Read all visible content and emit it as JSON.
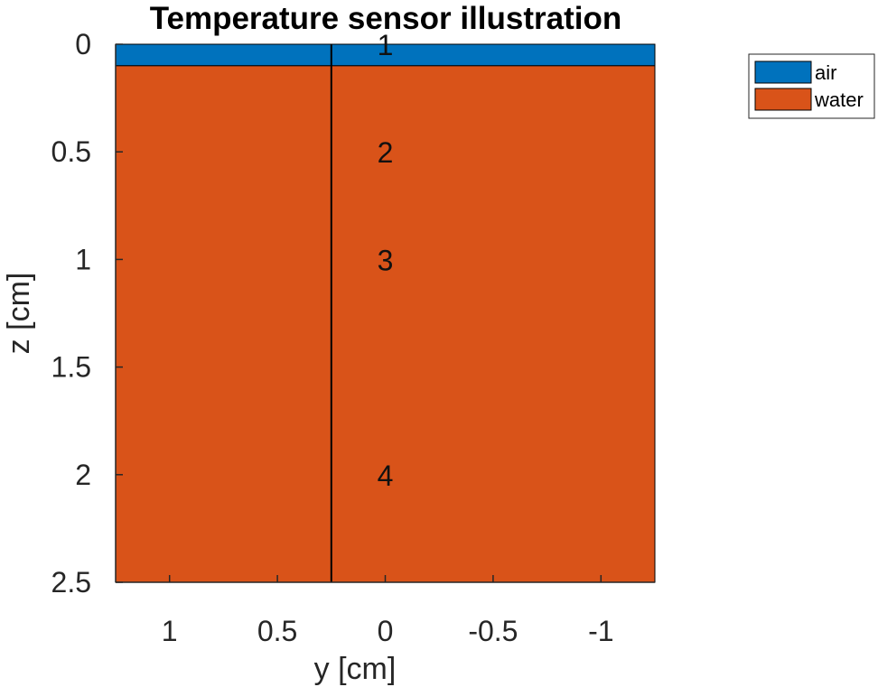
{
  "chart_data": {
    "type": "area",
    "title": "Temperature sensor illustration",
    "xlabel": "y [cm]",
    "ylabel": "z [cm]",
    "xlim": [
      1.25,
      -1.25
    ],
    "ylim": [
      2.5,
      0
    ],
    "x_reversed": true,
    "y_reversed": true,
    "xticks": [
      1,
      0.5,
      0,
      -0.5,
      -1
    ],
    "xtick_labels": [
      "1",
      "0.5",
      "0",
      "-0.5",
      "-1"
    ],
    "yticks": [
      0,
      0.5,
      1,
      1.5,
      2,
      2.5
    ],
    "ytick_labels": [
      "0",
      "0.5",
      "1",
      "1.5",
      "2",
      "2.5"
    ],
    "layers": [
      {
        "name": "air",
        "color": "#0072BD",
        "z_top": 0,
        "z_bottom": 0.1
      },
      {
        "name": "water",
        "color": "#D95319",
        "z_top": 0.1,
        "z_bottom": 2.5
      }
    ],
    "probe_line": {
      "y": 0.25,
      "z_top": 0,
      "z_bottom": 2.5
    },
    "sensors": [
      {
        "label": "1",
        "y": 0,
        "z": 0
      },
      {
        "label": "2",
        "y": 0,
        "z": 0.5
      },
      {
        "label": "3",
        "y": 0,
        "z": 1
      },
      {
        "label": "4",
        "y": 0,
        "z": 2
      }
    ],
    "legend": {
      "location": "outside-top-right",
      "entries": [
        {
          "label": "air",
          "color": "#0072BD"
        },
        {
          "label": "water",
          "color": "#D95319"
        }
      ]
    },
    "grid": false
  }
}
